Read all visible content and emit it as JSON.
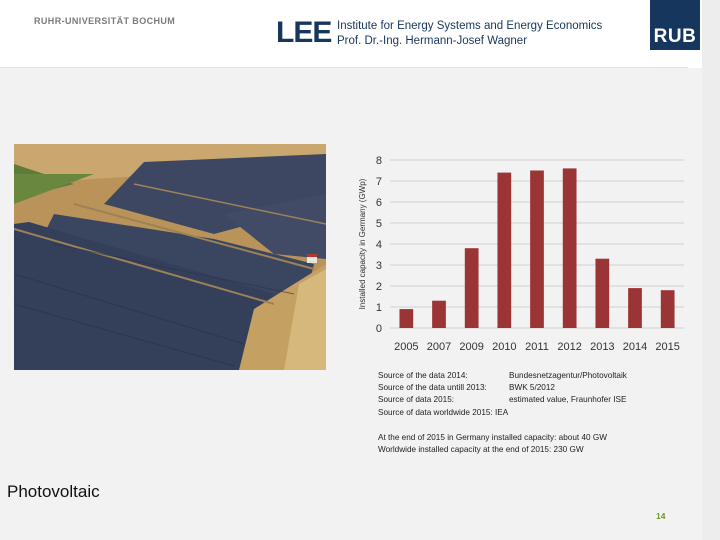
{
  "header": {
    "university": "RUHR-UNIVERSITÄT BOCHUM",
    "logo_text": "LEE",
    "institute": "Institute for Energy Systems and Energy Economics",
    "professor": "Prof. Dr.-Ing. Hermann-Josef Wagner",
    "rub_logo": "RUB"
  },
  "colors": {
    "brand": "#17365d",
    "bar": "#9b3434",
    "page_number": "#6c9a1f"
  },
  "chart_data": {
    "type": "bar",
    "title": "",
    "xlabel": "",
    "ylabel": "Installed capacity in Germany (GWp)",
    "categories": [
      "2005",
      "2007",
      "2009",
      "2010",
      "2011",
      "2012",
      "2013",
      "2014",
      "2015"
    ],
    "values": [
      0.9,
      1.3,
      3.8,
      7.4,
      7.5,
      7.6,
      3.3,
      1.9,
      1.8
    ],
    "ylim": [
      0,
      8
    ],
    "yticks": [
      "0",
      "1",
      "2",
      "3",
      "4",
      "5",
      "6",
      "7",
      "8"
    ],
    "grid": true
  },
  "sources": [
    {
      "label": "Source of the data 2014:",
      "value": "Bundesnetzagentur/Photovoltaik"
    },
    {
      "label": "Source of the data untill 2013:",
      "value": "BWK 5/2012"
    },
    {
      "label": "Source of data 2015:",
      "value": "estimated value, Fraunhofer ISE"
    },
    {
      "label": "Source of data worldwide 2015:",
      "value": "IEA"
    }
  ],
  "summary": {
    "line1": "At the end of 2015 in Germany installed capacity: about 40 GW",
    "line2": "Worldwide installed capacity at the end of 2015: 230 GW"
  },
  "section_title": "Photovoltaic",
  "page_number": "14"
}
